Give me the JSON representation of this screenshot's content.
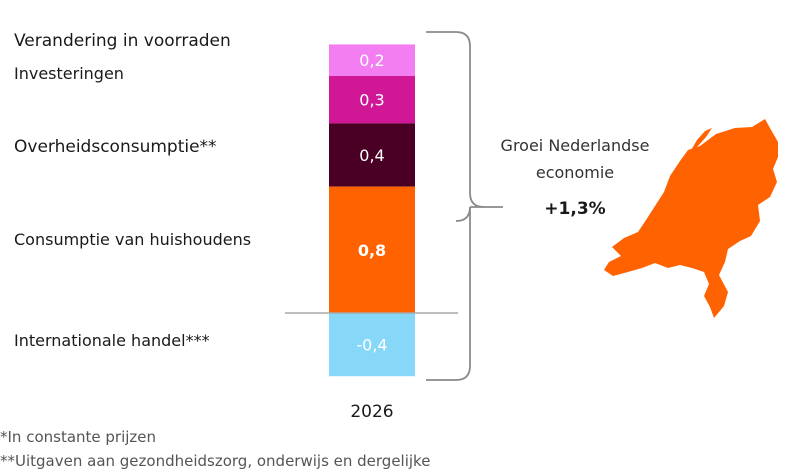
{
  "chart_data": {
    "type": "stacked-bar",
    "x_label": "2026",
    "series": [
      {
        "name": "Verandering in voorraden",
        "value": 0.2,
        "label": "0,2",
        "color": "#f27ef2",
        "label_color": "#ffffff",
        "bold": false
      },
      {
        "name": "Investeringen",
        "value": 0.3,
        "label": "0,3",
        "color": "#d01897",
        "label_color": "#ffffff",
        "bold": false
      },
      {
        "name": "Overheidsconsumptie**",
        "value": 0.4,
        "label": "0,4",
        "color": "#4a0024",
        "label_color": "#ffffff",
        "bold": false
      },
      {
        "name": "Consumptie van huishoudens",
        "value": 0.8,
        "label": "0,8",
        "color": "#ff6200",
        "label_color": "#ffffff",
        "bold": true
      },
      {
        "name": "Internationale handel***",
        "value": -0.4,
        "label": "-0,4",
        "color": "#87d7f8",
        "label_color": "#ffffff",
        "bold": false
      }
    ],
    "total": {
      "title": "Groei Nederlandse economie",
      "value": "+1,3%"
    },
    "map_color": "#ff6200"
  },
  "footnotes": [
    "*In constante prijzen",
    "**Uitgaven aan gezondheidszorg, onderwijs en dergelijke"
  ]
}
